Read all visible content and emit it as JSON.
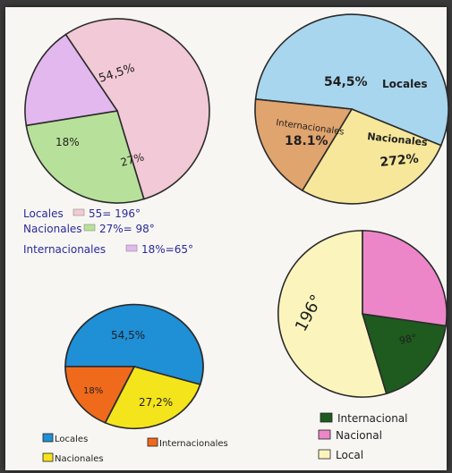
{
  "colors": {
    "paper": "#f7f6f3",
    "c1_pink": "#f2c9d6",
    "c1_green": "#b7e19a",
    "c1_violet": "#e3b8ee",
    "c2_blue": "#a8d6ee",
    "c2_orange": "#e0a46e",
    "c2_yellow": "#f6e79a",
    "c3_blue": "#1f8fd6",
    "c3_orange": "#f06a1c",
    "c3_yellow": "#f4e41c",
    "c4_darkgreen": "#1f5a1e",
    "c4_pink": "#ec86c9",
    "c4_yellow": "#fbf5bd"
  },
  "chart_data": [
    {
      "type": "pie",
      "slices": [
        {
          "label": "54,5%",
          "value": 54.5
        },
        {
          "label": "27%",
          "value": 27
        },
        {
          "label": "18%",
          "value": 18
        }
      ],
      "legend": [
        {
          "text": "Locales",
          "value_text": "5⁥5= 196°"
        },
        {
          "text": "Nacionales",
          "value_text": "27%= 98°"
        },
        {
          "text": "Internacionales",
          "value_text": "18%=65°"
        }
      ]
    },
    {
      "type": "pie",
      "slices": [
        {
          "label": "54,5%",
          "name": "Locales",
          "value": 54.5
        },
        {
          "label": "27⁡2%",
          "name": "Nacionales",
          "value": 27.2
        },
        {
          "label": "18.1%",
          "name": "Internacionales",
          "value": 18.1
        }
      ]
    },
    {
      "type": "pie",
      "slices": [
        {
          "label": "54,5%",
          "value": 54.5
        },
        {
          "label": "27,2%",
          "value": 27.2
        },
        {
          "label": "18%",
          "value": 18
        }
      ],
      "legend": [
        {
          "text": "Locales"
        },
        {
          "text": "Internacionales"
        },
        {
          "text": "Nacionales"
        }
      ]
    },
    {
      "type": "pie",
      "slices": [
        {
          "label": "196°",
          "value": 196
        },
        {
          "label": "",
          "value": 65
        },
        {
          "label": "98°",
          "value": 98
        }
      ],
      "legend": [
        {
          "text": "Internacional"
        },
        {
          "text": "Nacional"
        },
        {
          "text": "Local"
        }
      ]
    }
  ]
}
